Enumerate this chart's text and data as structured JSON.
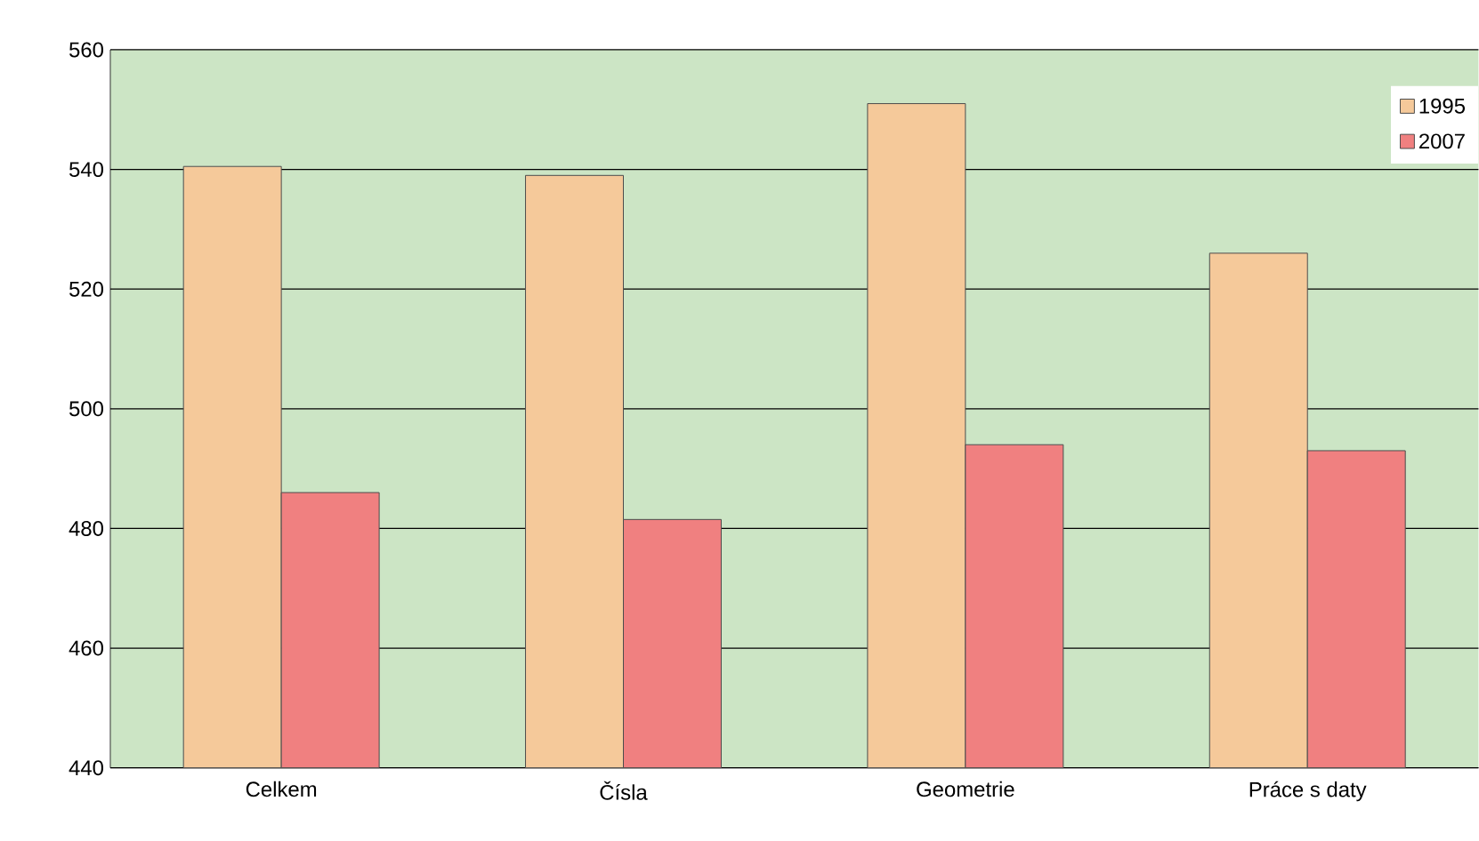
{
  "chart_data": {
    "type": "bar",
    "categories": [
      "Celkem",
      "Čísla",
      "Geometrie",
      "Práce s daty"
    ],
    "series": [
      {
        "name": "1995",
        "color": "#f5c99a",
        "values": [
          540.5,
          539,
          551,
          526
        ]
      },
      {
        "name": "2007",
        "color": "#f08080",
        "values": [
          486,
          481.5,
          494,
          493
        ]
      }
    ],
    "ylim": [
      440,
      560
    ],
    "yticks": [
      440,
      460,
      480,
      500,
      520,
      540,
      560
    ],
    "grid": "y",
    "legend": "top right"
  }
}
